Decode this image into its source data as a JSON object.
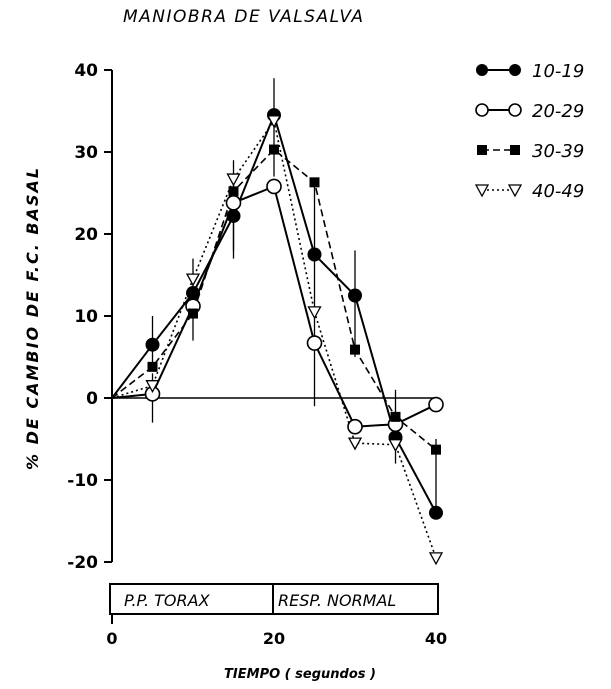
{
  "chart_data": {
    "type": "line",
    "title": "MANIOBRA DE VALSALVA",
    "xlabel": "TIEMPO ( segundos )",
    "ylabel": "% DE CAMBIO DE F.C. BASAL",
    "xlim": [
      0,
      40
    ],
    "ylim": [
      -20,
      40
    ],
    "xticks": [
      "0",
      "20",
      "40"
    ],
    "yticks": [
      "40",
      "30",
      "20",
      "10",
      "0",
      "-10",
      "-20"
    ],
    "phases": [
      "P.P. TORAX",
      "RESP. NORMAL"
    ],
    "legend_position": "top-right",
    "x": [
      0,
      5,
      10,
      15,
      20,
      25,
      30,
      35,
      40
    ],
    "series": [
      {
        "name": "10-19",
        "marker": "filled-circle",
        "line": "solid",
        "values": [
          0,
          6.5,
          12.8,
          22.2,
          34.5,
          17.5,
          12.5,
          -4.8,
          -14
        ]
      },
      {
        "name": "20-29",
        "marker": "open-circle",
        "line": "solid",
        "values": [
          0,
          0.5,
          11.2,
          23.8,
          25.8,
          6.7,
          -3.5,
          -3.2,
          -0.8
        ]
      },
      {
        "name": "30-39",
        "marker": "filled-square",
        "line": "dashed",
        "values": [
          0,
          3.8,
          10.3,
          25.2,
          30.3,
          26.3,
          5.9,
          -2.3,
          -6.3
        ]
      },
      {
        "name": "40-49",
        "marker": "open-triangle-down",
        "line": "dotted",
        "values": [
          0,
          1.5,
          14.5,
          26.7,
          33.8,
          10.5,
          -5.5,
          -5.7,
          -19.5
        ]
      }
    ]
  }
}
